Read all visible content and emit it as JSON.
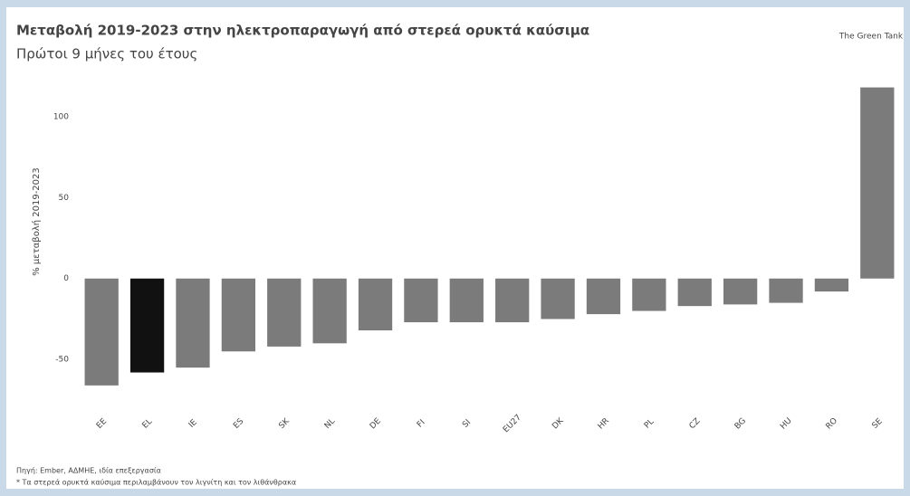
{
  "chart_data": {
    "type": "bar",
    "title": "Μεταβολή 2019-2023 στην ηλεκτροπαραγωγή από στερεά ορυκτά καύσιμα",
    "subtitle": "Πρώτοι 9 μήνες του έτους",
    "y_label": "% μεταβολή 2019-2023",
    "logo": "The Green Tank",
    "source": "Πηγή: Ember, ΑΔΜΗΕ, ιδία επεξεργασία",
    "note": "* Τα στερεά ορυκτά καύσιμα περιλαμβάνουν τον λιγνίτη και τον λιθάνθρακα",
    "categories": [
      "EE",
      "EL",
      "IE",
      "ES",
      "SK",
      "NL",
      "DE",
      "FI",
      "SI",
      "EU27",
      "DK",
      "HR",
      "PL",
      "CZ",
      "BG",
      "HU",
      "RO",
      "SE"
    ],
    "values": [
      -66,
      -58,
      -55,
      -45,
      -42,
      -40,
      -32,
      -27,
      -27,
      -27,
      -25,
      -22,
      -20,
      -17,
      -16,
      -15,
      -8,
      118
    ],
    "colors": [
      "#7b7b7b",
      "#111111",
      "#7b7b7b",
      "#7b7b7b",
      "#7b7b7b",
      "#7b7b7b",
      "#7b7b7b",
      "#7b7b7b",
      "#7b7b7b",
      "#7b7b7b",
      "#7b7b7b",
      "#7b7b7b",
      "#7b7b7b",
      "#7b7b7b",
      "#7b7b7b",
      "#7b7b7b",
      "#7b7b7b",
      "#7b7b7b"
    ],
    "ylim": [
      -70,
      120
    ],
    "yticks": [
      -50,
      0,
      50,
      100
    ],
    "grid": false
  }
}
